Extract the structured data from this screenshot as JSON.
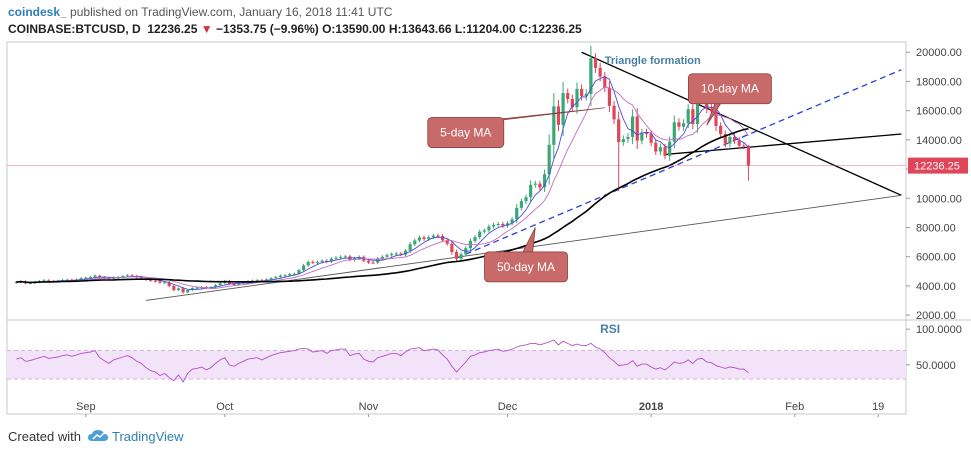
{
  "header": {
    "publisher": "coindesk_",
    "published_text": "published on TradingView.com, January 16, 2018 11:41 UTC",
    "symbol": "COINBASE:BTCUSD, D",
    "last": "12236.25",
    "change_arrow": "▼",
    "change": "−1353.75 (−9.96%)",
    "o_label": "O:",
    "o_value": "13590.00",
    "h_label": "H:",
    "h_value": "13643.66",
    "l_label": "L:",
    "l_value": "11204.00",
    "c_label": "C:",
    "c_value": "12236.25"
  },
  "footer": {
    "created_with": "Created with",
    "brand": "TradingView",
    "brand_icon": "tradingview-cloud-icon"
  },
  "colors": {
    "up": "#3aa876",
    "down": "#e0455a",
    "ma5": "#4b4bd9",
    "ma10": "#c26fc2",
    "ma50": "#000000",
    "trendline_dashed": "#2a3fd6",
    "rsi_line": "#b44fc8",
    "rsi_band": "#f3e3f8",
    "note_fill": "#c96a6a",
    "last_price_tag": "#e0455a"
  },
  "chart_data": {
    "type": "candlestick",
    "price_axis": {
      "ticks": [
        "2000.00",
        "4000.00",
        "6000.00",
        "8000.00",
        "10000.00",
        "12000.00",
        "14000.00",
        "16000.00",
        "18000.00",
        "20000.00"
      ],
      "range": [
        1800,
        20700
      ],
      "last_price_label": "12236.25"
    },
    "time_axis": {
      "labels": [
        "Sep",
        "Oct",
        "Nov",
        "Dec",
        "2018",
        "Feb",
        "19"
      ],
      "label_dates": [
        "2017-09-01",
        "2017-10-01",
        "2017-11-01",
        "2017-12-01",
        "2018-01-01",
        "2018-02-01",
        "2018-02-19"
      ],
      "range": [
        "2017-08-15",
        "2018-02-25"
      ]
    },
    "closes": [
      4260,
      4310,
      4180,
      4200,
      4260,
      4320,
      4380,
      4290,
      4330,
      4350,
      4400,
      4420,
      4380,
      4430,
      4520,
      4560,
      4610,
      4700,
      4590,
      4540,
      4480,
      4560,
      4600,
      4660,
      4720,
      4680,
      4590,
      4530,
      4420,
      4350,
      4310,
      4220,
      4240,
      3990,
      3720,
      3830,
      3560,
      3720,
      3850,
      3880,
      3920,
      3840,
      3900,
      4050,
      4190,
      4330,
      4130,
      4080,
      4180,
      4240,
      4320,
      4360,
      4390,
      4340,
      4440,
      4520,
      4600,
      4700,
      4720,
      4810,
      4830,
      5080,
      5400,
      5640,
      5600,
      5640,
      5720,
      5660,
      5860,
      5930,
      5990,
      6020,
      5780,
      5880,
      5980,
      5720,
      5600,
      5590,
      5880,
      5990,
      6100,
      6180,
      6210,
      6140,
      6410,
      6850,
      7110,
      7320,
      7210,
      7330,
      7440,
      7420,
      7120,
      6880,
      6320,
      5860,
      6170,
      6580,
      7080,
      7340,
      7710,
      7800,
      8060,
      8180,
      8240,
      8120,
      8290,
      8560,
      9340,
      9800,
      10070,
      10920,
      11000,
      10740,
      11640,
      13660,
      16290,
      15030,
      17210,
      16800,
      16230,
      17490,
      17000,
      17150,
      19590,
      18930,
      18330,
      17570,
      16330,
      15400,
      13850,
      14050,
      14200,
      15600,
      13950,
      14500,
      14400,
      13800,
      13200,
      13500,
      12900,
      13880,
      15200,
      14900,
      15140,
      16100,
      15080,
      16800,
      17100,
      16150,
      15950,
      14950,
      14400,
      13750,
      14200,
      13950,
      13600,
      13590,
      12236
    ],
    "moving_averages": [
      {
        "name": "5-day MA",
        "note_label": "5-day MA",
        "note_x": "2017-11-22",
        "note_y": 14500,
        "target_x": "2017-12-22",
        "target_y": 16200
      },
      {
        "name": "10-day MA",
        "note_label": "10-day MA",
        "note_x": "2018-01-18",
        "note_y": 17500,
        "target_x": "2018-01-13",
        "target_y": 15000
      },
      {
        "name": "50-day MA",
        "note_label": "50-day MA",
        "note_x": "2017-12-05",
        "note_y": 5300,
        "target_x": "2017-12-07",
        "target_y": 8000
      }
    ],
    "annotations": {
      "triangle_label": "Triangle formation",
      "triangle_label_x": "2017-12-22",
      "triangle_label_y": 19200,
      "lines": [
        {
          "style": "solid",
          "from": {
            "x": "2017-12-17",
            "y": 20000
          },
          "to": {
            "x": "2018-02-24",
            "y": 10200
          }
        },
        {
          "style": "solid",
          "from": {
            "x": "2018-01-04",
            "y": 13000
          },
          "to": {
            "x": "2018-02-24",
            "y": 14400
          }
        },
        {
          "style": "dashed",
          "from": {
            "x": "2017-11-20",
            "y": 5900
          },
          "to": {
            "x": "2018-02-24",
            "y": 18800
          }
        },
        {
          "style": "solid_thin",
          "from": {
            "x": "2017-09-14",
            "y": 3000
          },
          "to": {
            "x": "2018-02-24",
            "y": 10200
          }
        }
      ]
    },
    "rsi": {
      "label": "RSI",
      "ticks": [
        "50.0000",
        "100.0000"
      ],
      "range": [
        5,
        110
      ],
      "band": [
        30,
        70
      ],
      "values": [
        58,
        60,
        55,
        56,
        58,
        60,
        62,
        59,
        60,
        61,
        63,
        64,
        62,
        64,
        66,
        67,
        68,
        70,
        60,
        56,
        52,
        57,
        59,
        61,
        63,
        60,
        55,
        52,
        46,
        42,
        40,
        35,
        38,
        32,
        28,
        36,
        26,
        38,
        44,
        45,
        47,
        43,
        46,
        52,
        57,
        60,
        50,
        48,
        52,
        55,
        58,
        59,
        60,
        57,
        60,
        63,
        65,
        67,
        68,
        69,
        70,
        72,
        73,
        72,
        68,
        69,
        70,
        66,
        70,
        71,
        72,
        72,
        63,
        65,
        66,
        58,
        55,
        54,
        60,
        62,
        64,
        66,
        66,
        63,
        68,
        72,
        73,
        74,
        70,
        71,
        72,
        71,
        64,
        58,
        48,
        40,
        47,
        54,
        62,
        64,
        67,
        68,
        70,
        71,
        72,
        69,
        70,
        72,
        75,
        77,
        78,
        80,
        80,
        78,
        80,
        82,
        85,
        78,
        83,
        80,
        77,
        79,
        77,
        77,
        80,
        75,
        72,
        67,
        60,
        55,
        49,
        50,
        51,
        56,
        48,
        51,
        51,
        47,
        44,
        46,
        43,
        48,
        54,
        52,
        53,
        57,
        52,
        58,
        59,
        54,
        53,
        49,
        47,
        45,
        47,
        46,
        44,
        44,
        39
      ]
    }
  }
}
